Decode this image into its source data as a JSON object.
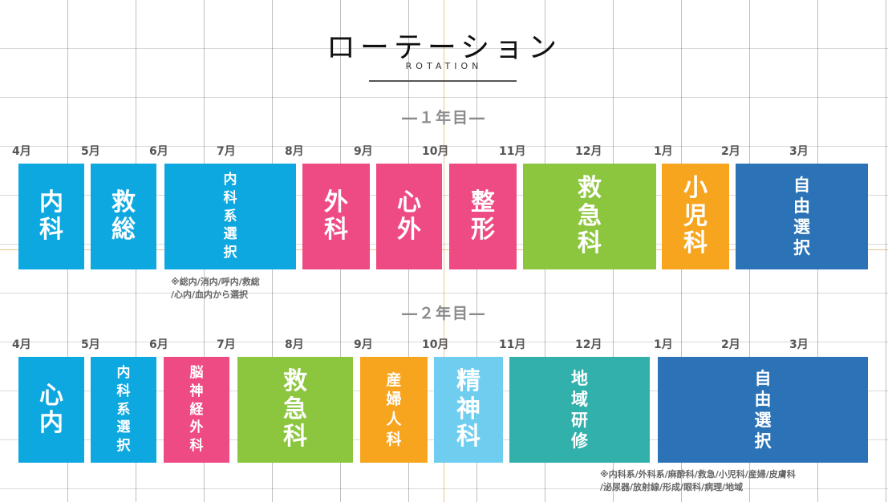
{
  "title": "ローテーション",
  "subtitle": "ROTATION",
  "year1": {
    "label": "―１年目―",
    "months": [
      "4月",
      "5月",
      "6月",
      "7月",
      "8月",
      "9月",
      "10月",
      "11月",
      "12月",
      "1月",
      "2月",
      "3月"
    ],
    "blocks": [
      "内科",
      "救総",
      "内科系選択",
      "外科",
      "心外",
      "整形",
      "救急科",
      "小児科",
      "自由選択"
    ],
    "note_line1": "※総内/消内/呼内/救総",
    "note_line2": "/心内/血内から選択"
  },
  "year2": {
    "label": "―２年目―",
    "months": [
      "4月",
      "5月",
      "6月",
      "7月",
      "8月",
      "9月",
      "10月",
      "11月",
      "12月",
      "1月",
      "2月",
      "3月"
    ],
    "blocks": [
      "心内",
      "内科系選択",
      "脳神経外科",
      "救急科",
      "産婦人科",
      "精神科",
      "地域研修",
      "自由選択"
    ],
    "note_line1": "※内科系/外科系/麻酔科/救急/小児科/産婦/皮膚科",
    "note_line2": "/泌尿器/放射線/形成/眼科/病理/地域"
  },
  "colors": {
    "blue": "#0ea8e0",
    "pink": "#ee4a83",
    "green": "#8cc63f",
    "orange": "#f7a51e",
    "darkblue": "#2b73b6",
    "lightblue": "#6fcdf0",
    "teal": "#32b0ac"
  }
}
